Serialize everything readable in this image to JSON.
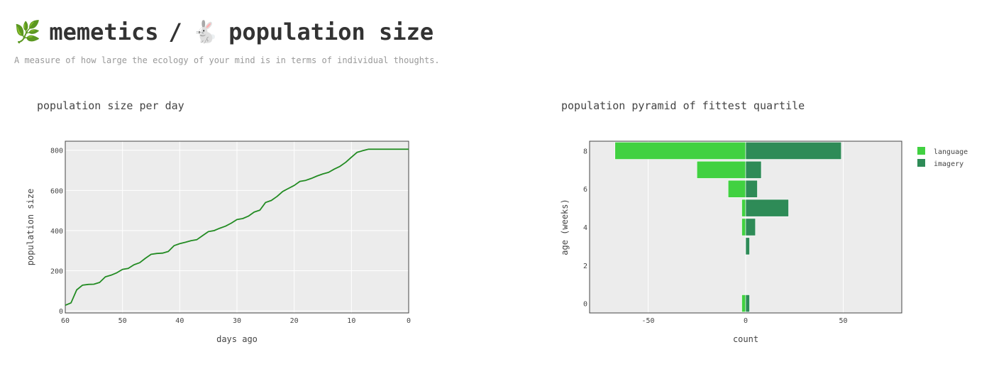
{
  "header": {
    "icon_left": "🌿",
    "icon_left_name": "sprout-icon",
    "app_name": "memetics",
    "separator": "/",
    "icon_right": "🐇",
    "icon_right_name": "rabbit-icon",
    "page_title": "population size",
    "subtitle": "A measure of how large the ecology of your mind is in terms of individual thoughts."
  },
  "chart_data": [
    {
      "type": "line",
      "title": "population size per day",
      "xlabel": "days ago",
      "ylabel": "population size",
      "xlim": [
        60,
        0
      ],
      "ylim": [
        -10,
        845
      ],
      "xticks": [
        60,
        50,
        40,
        30,
        20,
        10,
        0
      ],
      "yticks": [
        0,
        200,
        400,
        600,
        800
      ],
      "grid": true,
      "line_color": "#228b22",
      "x": [
        60,
        59,
        58,
        57,
        56,
        55,
        54,
        53,
        52,
        51,
        50,
        49,
        48,
        47,
        46,
        45,
        44,
        43,
        42,
        41,
        40,
        39,
        38,
        37,
        36,
        35,
        34,
        33,
        32,
        31,
        30,
        29,
        28,
        27,
        26,
        25,
        24,
        23,
        22,
        21,
        20,
        19,
        18,
        17,
        16,
        15,
        14,
        13,
        12,
        11,
        10,
        9,
        8,
        7,
        6,
        5,
        4,
        3,
        2,
        1,
        0
      ],
      "y": [
        28,
        40,
        105,
        128,
        132,
        133,
        142,
        170,
        178,
        190,
        207,
        212,
        230,
        240,
        262,
        282,
        286,
        288,
        296,
        325,
        335,
        342,
        350,
        355,
        375,
        395,
        400,
        412,
        422,
        437,
        455,
        460,
        472,
        492,
        502,
        540,
        550,
        570,
        595,
        610,
        625,
        645,
        650,
        660,
        672,
        682,
        690,
        706,
        720,
        740,
        765,
        790,
        798,
        805,
        805,
        805,
        805,
        805,
        805,
        805,
        805
      ]
    },
    {
      "type": "bar",
      "orientation": "horizontal",
      "title": "population pyramid of fittest quartile",
      "xlabel": "count",
      "ylabel": "age (weeks)",
      "xlim": [
        -80,
        80
      ],
      "ylim": [
        -0.5,
        8.5
      ],
      "xticks": [
        -50,
        0,
        50
      ],
      "yticks": [
        0,
        2,
        4,
        6,
        8
      ],
      "legend_position": "top-right",
      "categories": [
        8,
        7,
        6,
        5,
        4,
        3,
        2,
        1,
        0
      ],
      "series": [
        {
          "name": "language",
          "color": "#41d141",
          "values": [
            -67,
            -25,
            -9,
            -2,
            -2,
            0,
            0,
            0,
            -2
          ]
        },
        {
          "name": "imagery",
          "color": "#2e8b57",
          "values": [
            49,
            8,
            6,
            22,
            5,
            2,
            0,
            0,
            2
          ]
        }
      ]
    }
  ]
}
